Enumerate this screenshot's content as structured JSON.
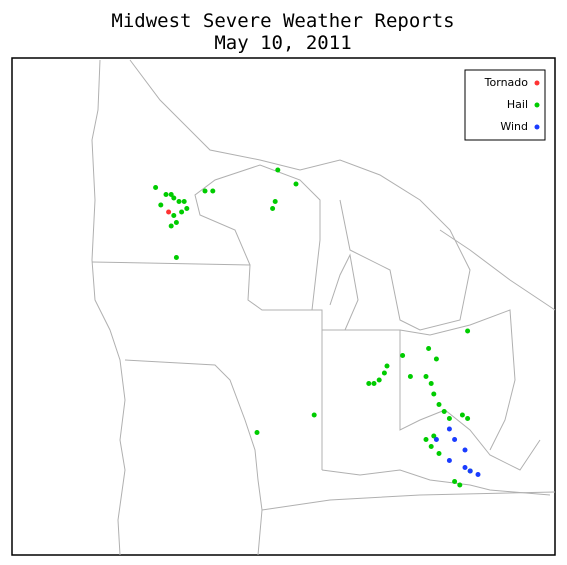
{
  "chart_data": {
    "type": "map",
    "title": "Midwest Severe Weather Reports",
    "subtitle": "May 10, 2011",
    "legend": "upper right",
    "series": [
      {
        "name": "Tornado",
        "color": "#ff3333",
        "lon": [
          -93.4
        ],
        "lat": [
          45.3
        ]
      },
      {
        "name": "Hail",
        "color": "#00cc00",
        "lon": [
          -93.9,
          -93.5,
          -93.3,
          -93.2,
          -93.7,
          -93.0,
          -92.8,
          -92.7,
          -92.9,
          -93.2,
          -93.1,
          -93.3,
          -92.0,
          -91.7,
          -93.1,
          -89.2,
          -88.5,
          -89.3,
          -89.4,
          -81.9,
          -84.4,
          -83.4,
          -83.1,
          -85.0,
          -85.1,
          -85.3,
          -85.5,
          -85.7,
          -84.1,
          -83.5,
          -83.3,
          -83.2,
          -83.0,
          -82.8,
          -82.6,
          -82.1,
          -81.9,
          -90.0,
          -87.8,
          -83.5,
          -83.3,
          -83.0,
          -83.2,
          -81.8,
          -82.4,
          -82.2
        ],
        "lat": [
          46.0,
          45.8,
          45.8,
          45.7,
          45.5,
          45.6,
          45.6,
          45.4,
          45.3,
          45.2,
          45.0,
          44.9,
          45.9,
          45.9,
          44.0,
          46.5,
          46.1,
          45.6,
          45.4,
          41.9,
          41.2,
          41.4,
          41.1,
          40.9,
          40.7,
          40.5,
          40.4,
          40.4,
          40.6,
          40.6,
          40.4,
          40.1,
          39.8,
          39.6,
          39.4,
          39.5,
          39.4,
          39.0,
          39.5,
          38.8,
          38.6,
          38.4,
          38.9,
          37.9,
          37.6,
          37.5
        ]
      },
      {
        "name": "Wind",
        "color": "#1a3cff",
        "lon": [
          -82.6,
          -82.4,
          -83.1,
          -82.0,
          -82.0,
          -81.8,
          -81.5,
          -82.6
        ],
        "lat": [
          39.1,
          38.8,
          38.8,
          38.5,
          38.0,
          37.9,
          37.8,
          38.2
        ]
      }
    ]
  }
}
